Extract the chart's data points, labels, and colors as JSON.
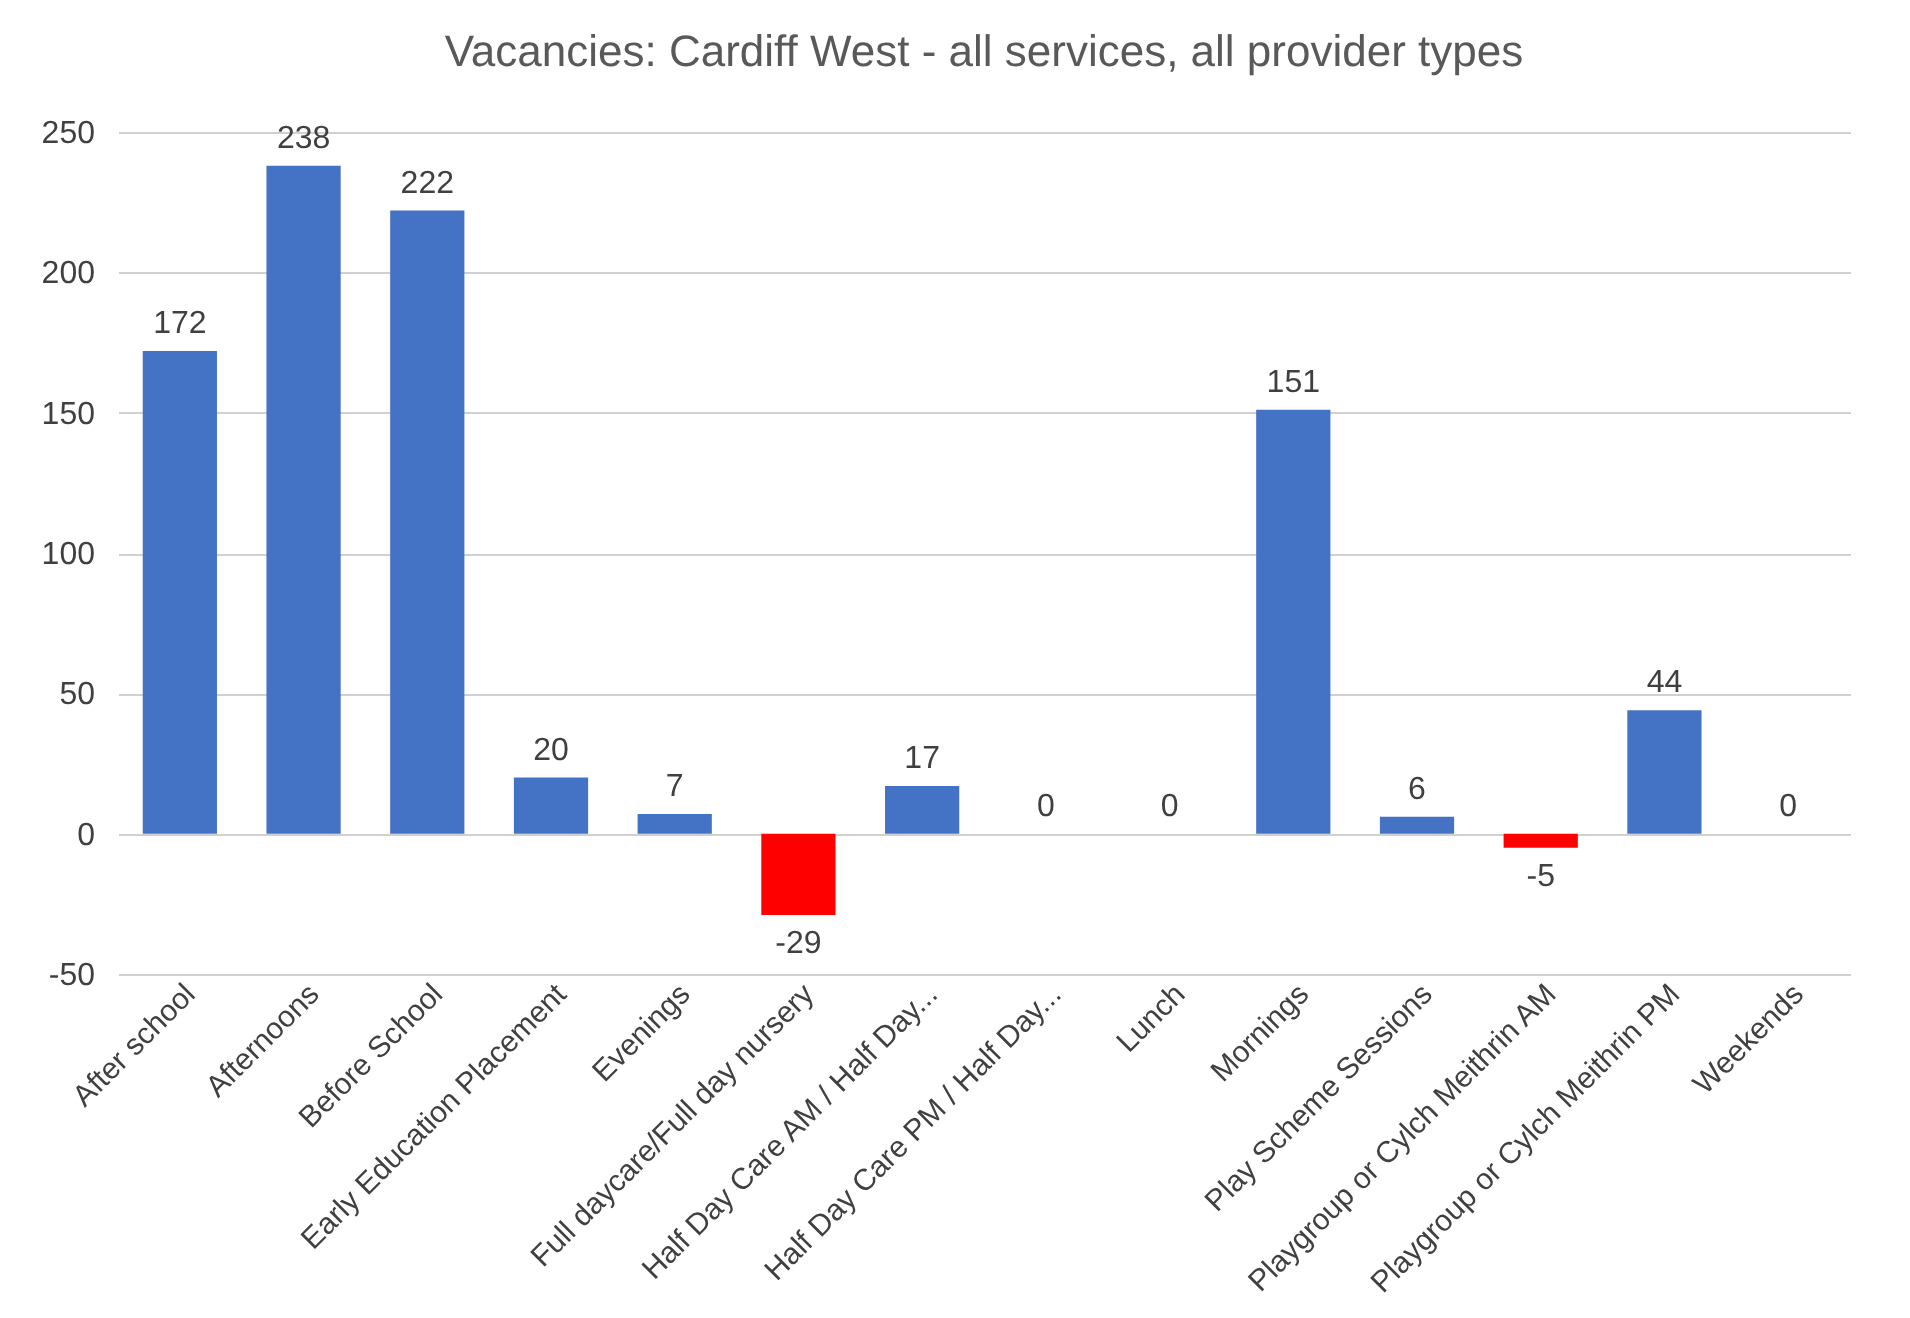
{
  "chart_data": {
    "type": "bar",
    "title": "Vacancies: Cardiff West - all services, all provider types",
    "categories": [
      "After school",
      "Afternoons",
      "Before School",
      "Early Education Placement",
      "Evenings",
      "Full daycare/Full day nursery",
      "Half Day Care AM / Half Day...",
      "Half Day Care PM / Half Day...",
      "Lunch",
      "Mornings",
      "Play Scheme Sessions",
      "Playgroup or Cylch Meithrin AM",
      "Playgroup or Cylch Meithrin PM",
      "Weekends"
    ],
    "values": [
      172,
      238,
      222,
      20,
      7,
      -29,
      17,
      0,
      0,
      151,
      6,
      -5,
      44,
      0
    ],
    "colors": [
      "#4472c4",
      "#4472c4",
      "#4472c4",
      "#4472c4",
      "#4472c4",
      "#ff0000",
      "#4472c4",
      "#4472c4",
      "#4472c4",
      "#4472c4",
      "#4472c4",
      "#ff0000",
      "#4472c4",
      "#4472c4"
    ],
    "ylim": [
      -50,
      250
    ],
    "yticks": [
      -50,
      0,
      50,
      100,
      150,
      200,
      250
    ],
    "grid": "y",
    "data_labels": true
  }
}
